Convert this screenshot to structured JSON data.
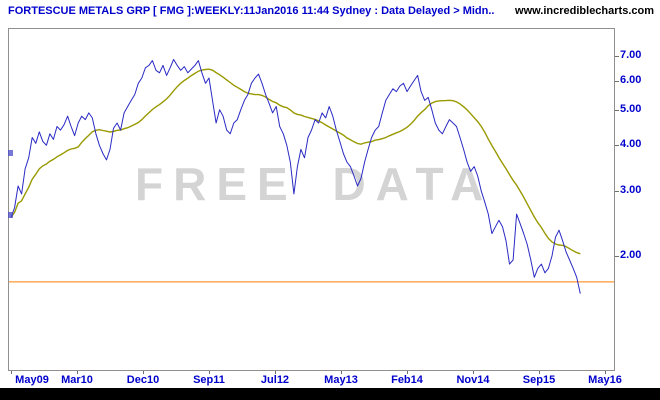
{
  "header": {
    "title": "FORTESCUE METALS GRP [ FMG ]:WEEKLY:11Jan2016 11:44 Sydney : Data Delayed > Midn..",
    "website": "www.incrediblecharts.com"
  },
  "watermark": "FREE DATA",
  "colors": {
    "header_text": "#0000cc",
    "axis_text": "#0000cc",
    "price_line": "#2a2ac4",
    "ma_line": "#999900",
    "support_line": "#ff9933",
    "watermark": "#d4d4d4",
    "frame_border": "#909090",
    "bottom_bar": "#000000"
  },
  "chart_data": {
    "type": "line",
    "title": "Fortescue Metals Group [FMG] weekly closing price, semi-log scale",
    "x_axis_labels": [
      "May09",
      "Mar10",
      "Dec10",
      "Sep11",
      "Jul12",
      "May13",
      "Feb14",
      "Nov14",
      "Sep15",
      "May16"
    ],
    "y_axis_labels": [
      "7.00",
      "6.00",
      "5.00",
      "4.00",
      "3.00",
      "2.00"
    ],
    "y_scale": "log",
    "ylim": [
      1.0,
      8.3
    ],
    "x_range_months": [
      0,
      84
    ],
    "x_step_months": 0.5,
    "support_level": 1.7,
    "grid": false,
    "legend": false,
    "series": [
      {
        "name": "FMG weekly close",
        "color": "#2a2ac4",
        "values": [
          2.55,
          2.7,
          3.1,
          2.95,
          3.45,
          3.7,
          4.2,
          4.05,
          4.35,
          4.1,
          4.0,
          4.3,
          4.15,
          4.5,
          4.4,
          4.55,
          4.8,
          4.5,
          4.25,
          4.6,
          4.8,
          4.7,
          4.9,
          4.75,
          4.3,
          4.0,
          3.8,
          3.65,
          3.9,
          4.45,
          4.6,
          4.4,
          4.9,
          5.1,
          5.3,
          5.5,
          5.9,
          6.1,
          6.5,
          6.6,
          6.8,
          6.4,
          6.3,
          6.6,
          6.2,
          6.5,
          6.85,
          6.6,
          6.4,
          6.55,
          6.3,
          6.45,
          6.6,
          6.8,
          6.3,
          5.9,
          6.1,
          5.3,
          4.6,
          5.0,
          4.8,
          4.4,
          4.3,
          4.6,
          4.7,
          5.0,
          5.3,
          5.5,
          5.9,
          6.1,
          6.25,
          5.9,
          5.5,
          5.2,
          4.9,
          5.1,
          4.5,
          4.3,
          4.0,
          3.6,
          2.95,
          3.5,
          3.9,
          3.7,
          4.2,
          4.4,
          4.7,
          4.6,
          4.9,
          4.75,
          5.1,
          4.8,
          4.4,
          4.1,
          3.8,
          3.6,
          3.5,
          3.3,
          3.1,
          3.25,
          3.6,
          3.9,
          4.2,
          4.4,
          4.5,
          4.9,
          5.3,
          5.5,
          5.7,
          5.6,
          5.8,
          5.9,
          5.6,
          5.8,
          6.0,
          6.2,
          5.6,
          5.3,
          5.4,
          5.0,
          4.6,
          4.4,
          4.3,
          4.5,
          4.7,
          4.6,
          4.5,
          4.2,
          3.9,
          3.6,
          3.4,
          3.5,
          3.3,
          3.0,
          2.8,
          2.6,
          2.3,
          2.4,
          2.5,
          2.4,
          2.2,
          1.9,
          1.95,
          2.6,
          2.45,
          2.3,
          2.15,
          1.95,
          1.75,
          1.85,
          1.9,
          1.8,
          1.85,
          2.0,
          2.25,
          2.35,
          2.2,
          2.05,
          1.95,
          1.85,
          1.75,
          1.58
        ]
      },
      {
        "name": "moving average",
        "color": "#999900",
        "derived_from": "FMG weekly close",
        "window_points": 20
      }
    ]
  }
}
